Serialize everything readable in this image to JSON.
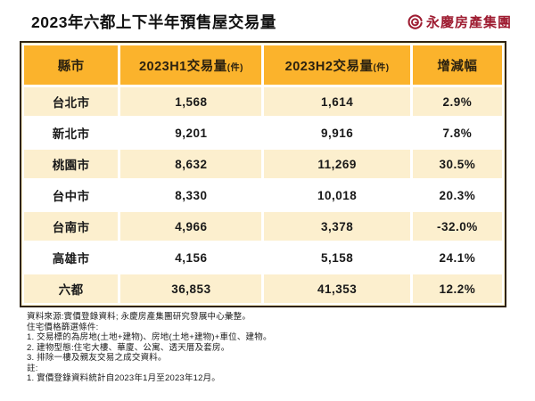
{
  "title": "2023年六都上下半年預售屋交易量",
  "logo": {
    "text": "永慶房產集團",
    "icon": "spiral-g-ring",
    "color": "#9e1c31"
  },
  "colors": {
    "header_bg": "#fbb32c",
    "row_cream": "#fcefce",
    "row_white": "#ffffff",
    "frame_border": "#2e2210",
    "header_text": "#2c2210",
    "body_text": "#191919",
    "brand_red": "#9e1c31"
  },
  "table": {
    "headers": [
      {
        "label": "縣市",
        "unit": ""
      },
      {
        "label": "2023H1交易量",
        "unit": "(件)"
      },
      {
        "label": "2023H2交易量",
        "unit": "(件)"
      },
      {
        "label": "增減幅",
        "unit": ""
      }
    ],
    "rows": [
      {
        "city": "台北市",
        "h1": "1,568",
        "h2": "1,614",
        "change": "2.9%"
      },
      {
        "city": "新北市",
        "h1": "9,201",
        "h2": "9,916",
        "change": "7.8%"
      },
      {
        "city": "桃園市",
        "h1": "8,632",
        "h2": "11,269",
        "change": "30.5%"
      },
      {
        "city": "台中市",
        "h1": "8,330",
        "h2": "10,018",
        "change": "20.3%"
      },
      {
        "city": "台南市",
        "h1": "4,966",
        "h2": "3,378",
        "change": "-32.0%"
      },
      {
        "city": "高雄市",
        "h1": "4,156",
        "h2": "5,158",
        "change": "24.1%"
      },
      {
        "city": "六都",
        "h1": "36,853",
        "h2": "41,353",
        "change": "12.2%"
      }
    ]
  },
  "footnotes": [
    "資料來源:實價登錄資料; 永慶房產集團研究發展中心彙整。",
    "住宅價格篩選條件:",
    "1. 交易標的為房地(土地+建物)、房地(土地+建物)+車位、建物。",
    "2. 建物型態:住宅大樓、華廈、公寓、透天厝及套房。",
    "3. 排除一樓及親友交易之成交資料。",
    "註:",
    "1. 實價登錄資料統計自2023年1月至2023年12月。"
  ],
  "chart_data": {
    "type": "table",
    "title": "2023年六都上下半年預售屋交易量",
    "columns": [
      "縣市",
      "2023H1交易量(件)",
      "2023H2交易量(件)",
      "增減幅"
    ],
    "rows": [
      [
        "台北市",
        1568,
        1614,
        "2.9%"
      ],
      [
        "新北市",
        9201,
        9916,
        "7.8%"
      ],
      [
        "桃園市",
        8632,
        11269,
        "30.5%"
      ],
      [
        "台中市",
        8330,
        10018,
        "20.3%"
      ],
      [
        "台南市",
        4966,
        3378,
        "-32.0%"
      ],
      [
        "高雄市",
        4156,
        5158,
        "24.1%"
      ],
      [
        "六都",
        36853,
        41353,
        "12.2%"
      ]
    ],
    "source": "實價登錄資料; 永慶房產集團研究發展中心彙整",
    "period": "2023年1月至2023年12月"
  }
}
